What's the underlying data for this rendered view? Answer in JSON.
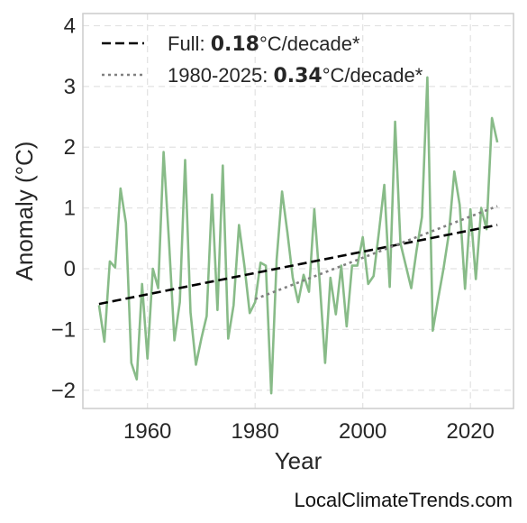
{
  "chart_data": {
    "type": "line",
    "xlabel": "Year",
    "ylabel": "Anomaly (°C)",
    "xlim": [
      1948,
      2028
    ],
    "ylim": [
      -2.3,
      4.2
    ],
    "xticks": [
      1960,
      1980,
      2000,
      2020
    ],
    "yticks": [
      -2,
      -1,
      0,
      1,
      2,
      3,
      4
    ],
    "ytick_labels": [
      "−2",
      "−1",
      "0",
      "1",
      "2",
      "3",
      "4"
    ],
    "grid": true,
    "legend_position": "top-left",
    "series": [
      {
        "color": "#88bb88",
        "x": [
          1951,
          1952,
          1953,
          1954,
          1955,
          1956,
          1957,
          1958,
          1959,
          1960,
          1961,
          1962,
          1963,
          1964,
          1965,
          1966,
          1967,
          1968,
          1969,
          1970,
          1971,
          1972,
          1973,
          1974,
          1975,
          1976,
          1977,
          1978,
          1979,
          1980,
          1981,
          1982,
          1983,
          1984,
          1985,
          1986,
          1987,
          1988,
          1989,
          1990,
          1991,
          1992,
          1993,
          1994,
          1995,
          1996,
          1997,
          1998,
          1999,
          2000,
          2001,
          2002,
          2003,
          2004,
          2005,
          2006,
          2007,
          2008,
          2009,
          2010,
          2011,
          2012,
          2013,
          2014,
          2015,
          2016,
          2017,
          2018,
          2019,
          2020,
          2021,
          2022,
          2023,
          2024,
          2025
        ],
        "y": [
          -0.6,
          -1.2,
          0.12,
          0.02,
          1.32,
          0.75,
          -1.55,
          -1.82,
          -0.25,
          -1.48,
          0.0,
          -0.32,
          1.92,
          0.45,
          -1.18,
          -0.55,
          1.79,
          -0.72,
          -1.58,
          -1.15,
          -0.78,
          1.22,
          -0.68,
          1.7,
          -1.15,
          -0.6,
          0.72,
          0.05,
          -0.73,
          -0.55,
          0.1,
          0.05,
          -2.05,
          0.15,
          1.27,
          0.6,
          -0.15,
          -0.55,
          -0.1,
          -0.38,
          0.98,
          -0.22,
          -1.55,
          -0.15,
          -0.75,
          0.05,
          -0.95,
          0.05,
          0.05,
          0.52,
          -0.25,
          -0.12,
          0.6,
          1.38,
          -0.3,
          2.42,
          0.42,
          0.05,
          -0.32,
          0.3,
          0.85,
          3.15,
          -1.02,
          -0.5,
          0.0,
          0.58,
          1.6,
          1.05,
          -0.33,
          0.98,
          -0.17,
          1.0,
          0.65,
          2.48,
          2.08
        ]
      }
    ],
    "trendlines": [
      {
        "legend_prefix": "Full: ",
        "value_text": "0.18",
        "legend_suffix": "°C/decade*",
        "x": [
          1951,
          2025
        ],
        "y": [
          -0.58,
          0.72
        ],
        "color": "#000000",
        "dash": "dashed"
      },
      {
        "legend_prefix": "1980-2025: ",
        "value_text": "0.34",
        "legend_suffix": "°C/decade*",
        "x": [
          1980,
          2025
        ],
        "y": [
          -0.5,
          1.03
        ],
        "color": "#808080",
        "dash": "dotted"
      }
    ]
  },
  "watermark": "LocalClimateTrends.com"
}
